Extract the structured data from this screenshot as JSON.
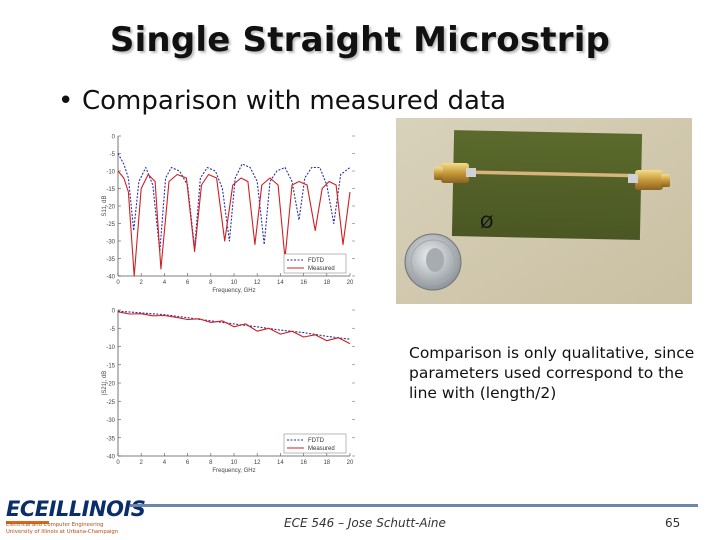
{
  "slide": {
    "title": "Single Straight Microstrip",
    "bullet": "Comparison with measured data",
    "note": "Comparison is only qualitative, since parameters used correspond to the line with (length/2)",
    "footer": "ECE 546 – Jose Schutt-Aine",
    "page_number": "65"
  },
  "logo": {
    "main_left": "ECE",
    "main_right": "ILLINOIS",
    "sub_line1": "Electrical and Computer Engineering",
    "sub_line2": "University of Illinois at Urbana-Champaign"
  },
  "photo": {
    "board_label": "Ø"
  },
  "colors": {
    "fdtd": "#2b2fa8",
    "measured": "#d21f1f",
    "accent": "#6b86a8"
  },
  "chart_data": [
    {
      "type": "line",
      "xlabel": "Frequency, GHz",
      "ylabel": "S11, dB",
      "xlim": [
        0,
        20
      ],
      "ylim": [
        -40,
        0
      ],
      "x_ticks": [
        "0",
        "2",
        "4",
        "6",
        "8",
        "10",
        "12",
        "14",
        "16",
        "18",
        "20"
      ],
      "y_ticks": [
        "0",
        "-5",
        "-10",
        "-15",
        "-20",
        "-25",
        "-30",
        "-35",
        "-40"
      ],
      "legend": [
        "FDTD",
        "Measured"
      ],
      "legend_position": "bottom-right",
      "series": [
        {
          "name": "FDTD",
          "style": "dashed",
          "x": [
            0,
            0.5,
            0.9,
            1.35,
            1.8,
            2.4,
            3.0,
            3.6,
            4.1,
            4.6,
            5.3,
            6.0,
            6.6,
            7.1,
            7.7,
            8.4,
            9.0,
            9.6,
            10.1,
            10.7,
            11.4,
            12.0,
            12.6,
            13.1,
            13.7,
            14.4,
            15.0,
            15.6,
            16.1,
            16.7,
            17.4,
            18.0,
            18.6,
            19.2,
            20.0
          ],
          "y": [
            -5,
            -8,
            -12,
            -27,
            -13,
            -9,
            -14,
            -33,
            -12,
            -9,
            -10,
            -14,
            -32,
            -12,
            -9,
            -10,
            -15,
            -30,
            -12,
            -8,
            -9,
            -13,
            -31,
            -13,
            -10,
            -9,
            -13,
            -24,
            -12,
            -9,
            -9,
            -14,
            -25,
            -11,
            -9
          ]
        },
        {
          "name": "Measured",
          "style": "solid",
          "x": [
            0,
            0.5,
            0.9,
            1.4,
            2.0,
            2.6,
            3.2,
            3.7,
            4.4,
            5.1,
            5.9,
            6.6,
            7.2,
            7.8,
            8.5,
            9.2,
            9.9,
            10.6,
            11.2,
            11.8,
            12.4,
            13.1,
            13.8,
            14.4,
            15.0,
            15.6,
            16.3,
            17.0,
            17.6,
            18.2,
            18.8,
            19.4,
            20.0
          ],
          "y": [
            -10,
            -12,
            -16,
            -40,
            -15,
            -11,
            -13,
            -38,
            -13,
            -11,
            -12,
            -33,
            -14,
            -11,
            -12,
            -30,
            -14,
            -12,
            -13,
            -31,
            -14,
            -12,
            -14,
            -35,
            -14,
            -13,
            -14,
            -27,
            -15,
            -13,
            -14,
            -31,
            -16
          ]
        }
      ]
    },
    {
      "type": "line",
      "xlabel": "Frequency, GHz",
      "ylabel": "|S21|, dB",
      "xlim": [
        0,
        20
      ],
      "ylim": [
        -40,
        0
      ],
      "x_ticks": [
        "0",
        "2",
        "4",
        "6",
        "8",
        "10",
        "12",
        "14",
        "16",
        "18",
        "20"
      ],
      "y_ticks": [
        "0",
        "-5",
        "-10",
        "-15",
        "-20",
        "-25",
        "-30",
        "-35",
        "-40"
      ],
      "legend": [
        "FDTD",
        "Measured"
      ],
      "legend_position": "bottom-right",
      "series": [
        {
          "name": "FDTD",
          "style": "dashed",
          "x": [
            0,
            2,
            4,
            6,
            8,
            10,
            12,
            14,
            16,
            18,
            20
          ],
          "y": [
            -0.3,
            -0.8,
            -1.3,
            -2.1,
            -3.0,
            -3.8,
            -4.6,
            -5.5,
            -6.2,
            -7.2,
            -8.0
          ]
        },
        {
          "name": "Measured",
          "style": "solid",
          "x": [
            0,
            1,
            2,
            3,
            4,
            5,
            6,
            7,
            8,
            9,
            10,
            11,
            12,
            13,
            14,
            15,
            16,
            17,
            18,
            19,
            20
          ],
          "y": [
            -0.5,
            -1.1,
            -1.0,
            -1.6,
            -1.5,
            -2.0,
            -2.6,
            -2.4,
            -3.4,
            -3.0,
            -4.6,
            -3.8,
            -5.8,
            -5.0,
            -6.6,
            -5.8,
            -7.4,
            -6.8,
            -8.4,
            -7.6,
            -9.2
          ]
        }
      ]
    }
  ]
}
